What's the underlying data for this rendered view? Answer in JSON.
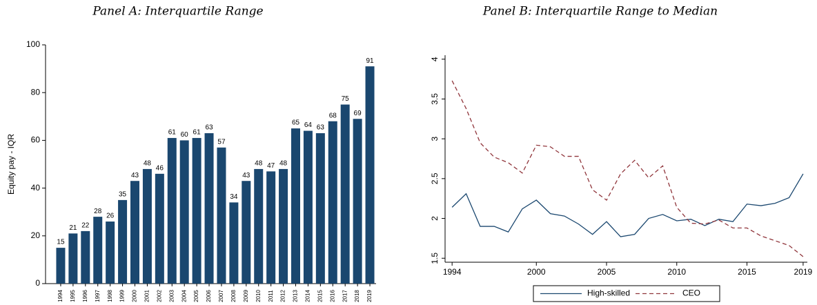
{
  "chart_data": [
    {
      "type": "bar",
      "title": "Panel A: Interquartile Range",
      "ylabel": "Equity pay - IQR",
      "categories": [
        "1994",
        "1995",
        "1996",
        "1997",
        "1998",
        "1999",
        "2000",
        "2001",
        "2002",
        "2003",
        "2004",
        "2005",
        "2006",
        "2007",
        "2008",
        "2009",
        "2010",
        "2011",
        "2012",
        "2013",
        "2014",
        "2015",
        "2016",
        "2017",
        "2018",
        "2019"
      ],
      "values": [
        15,
        21,
        22,
        28,
        26,
        35,
        43,
        48,
        46,
        61,
        60,
        61,
        63,
        57,
        34,
        43,
        48,
        47,
        48,
        65,
        64,
        63,
        68,
        75,
        69,
        91
      ],
      "color": "#1a476f",
      "ylim": [
        0,
        100
      ],
      "yticks": [
        0,
        20,
        40,
        60,
        80,
        100
      ]
    },
    {
      "type": "line",
      "title": "Panel B: Interquartile Range to Median",
      "x": [
        1994,
        1995,
        1996,
        1997,
        1998,
        1999,
        2000,
        2001,
        2002,
        2003,
        2004,
        2005,
        2006,
        2007,
        2008,
        2009,
        2010,
        2011,
        2012,
        2013,
        2014,
        2015,
        2016,
        2017,
        2018,
        2019
      ],
      "series": [
        {
          "name": "High-skilled",
          "color": "#1a476f",
          "dash": "solid",
          "values": [
            2.14,
            2.31,
            1.9,
            1.9,
            1.83,
            2.12,
            2.23,
            2.06,
            2.03,
            1.93,
            1.8,
            1.96,
            1.77,
            1.8,
            2.0,
            2.05,
            1.97,
            1.99,
            1.91,
            1.99,
            1.96,
            2.18,
            2.16,
            2.19,
            2.26,
            2.56
          ]
        },
        {
          "name": "CEO",
          "color": "#90353b",
          "dash": "dashed",
          "values": [
            3.73,
            3.38,
            2.95,
            2.77,
            2.7,
            2.57,
            2.92,
            2.9,
            2.78,
            2.78,
            2.36,
            2.23,
            2.56,
            2.73,
            2.51,
            2.66,
            2.14,
            1.94,
            1.93,
            1.98,
            1.88,
            1.88,
            1.78,
            1.72,
            1.66,
            1.52
          ]
        }
      ],
      "xlim": [
        1993.5,
        2019.3
      ],
      "xticks": [
        1994,
        2000,
        2005,
        2010,
        2015,
        2019
      ],
      "ylim": [
        1.45,
        4.05
      ],
      "yticks": [
        1.5,
        2,
        2.5,
        3,
        3.5,
        4
      ],
      "legend": "bottom"
    }
  ]
}
